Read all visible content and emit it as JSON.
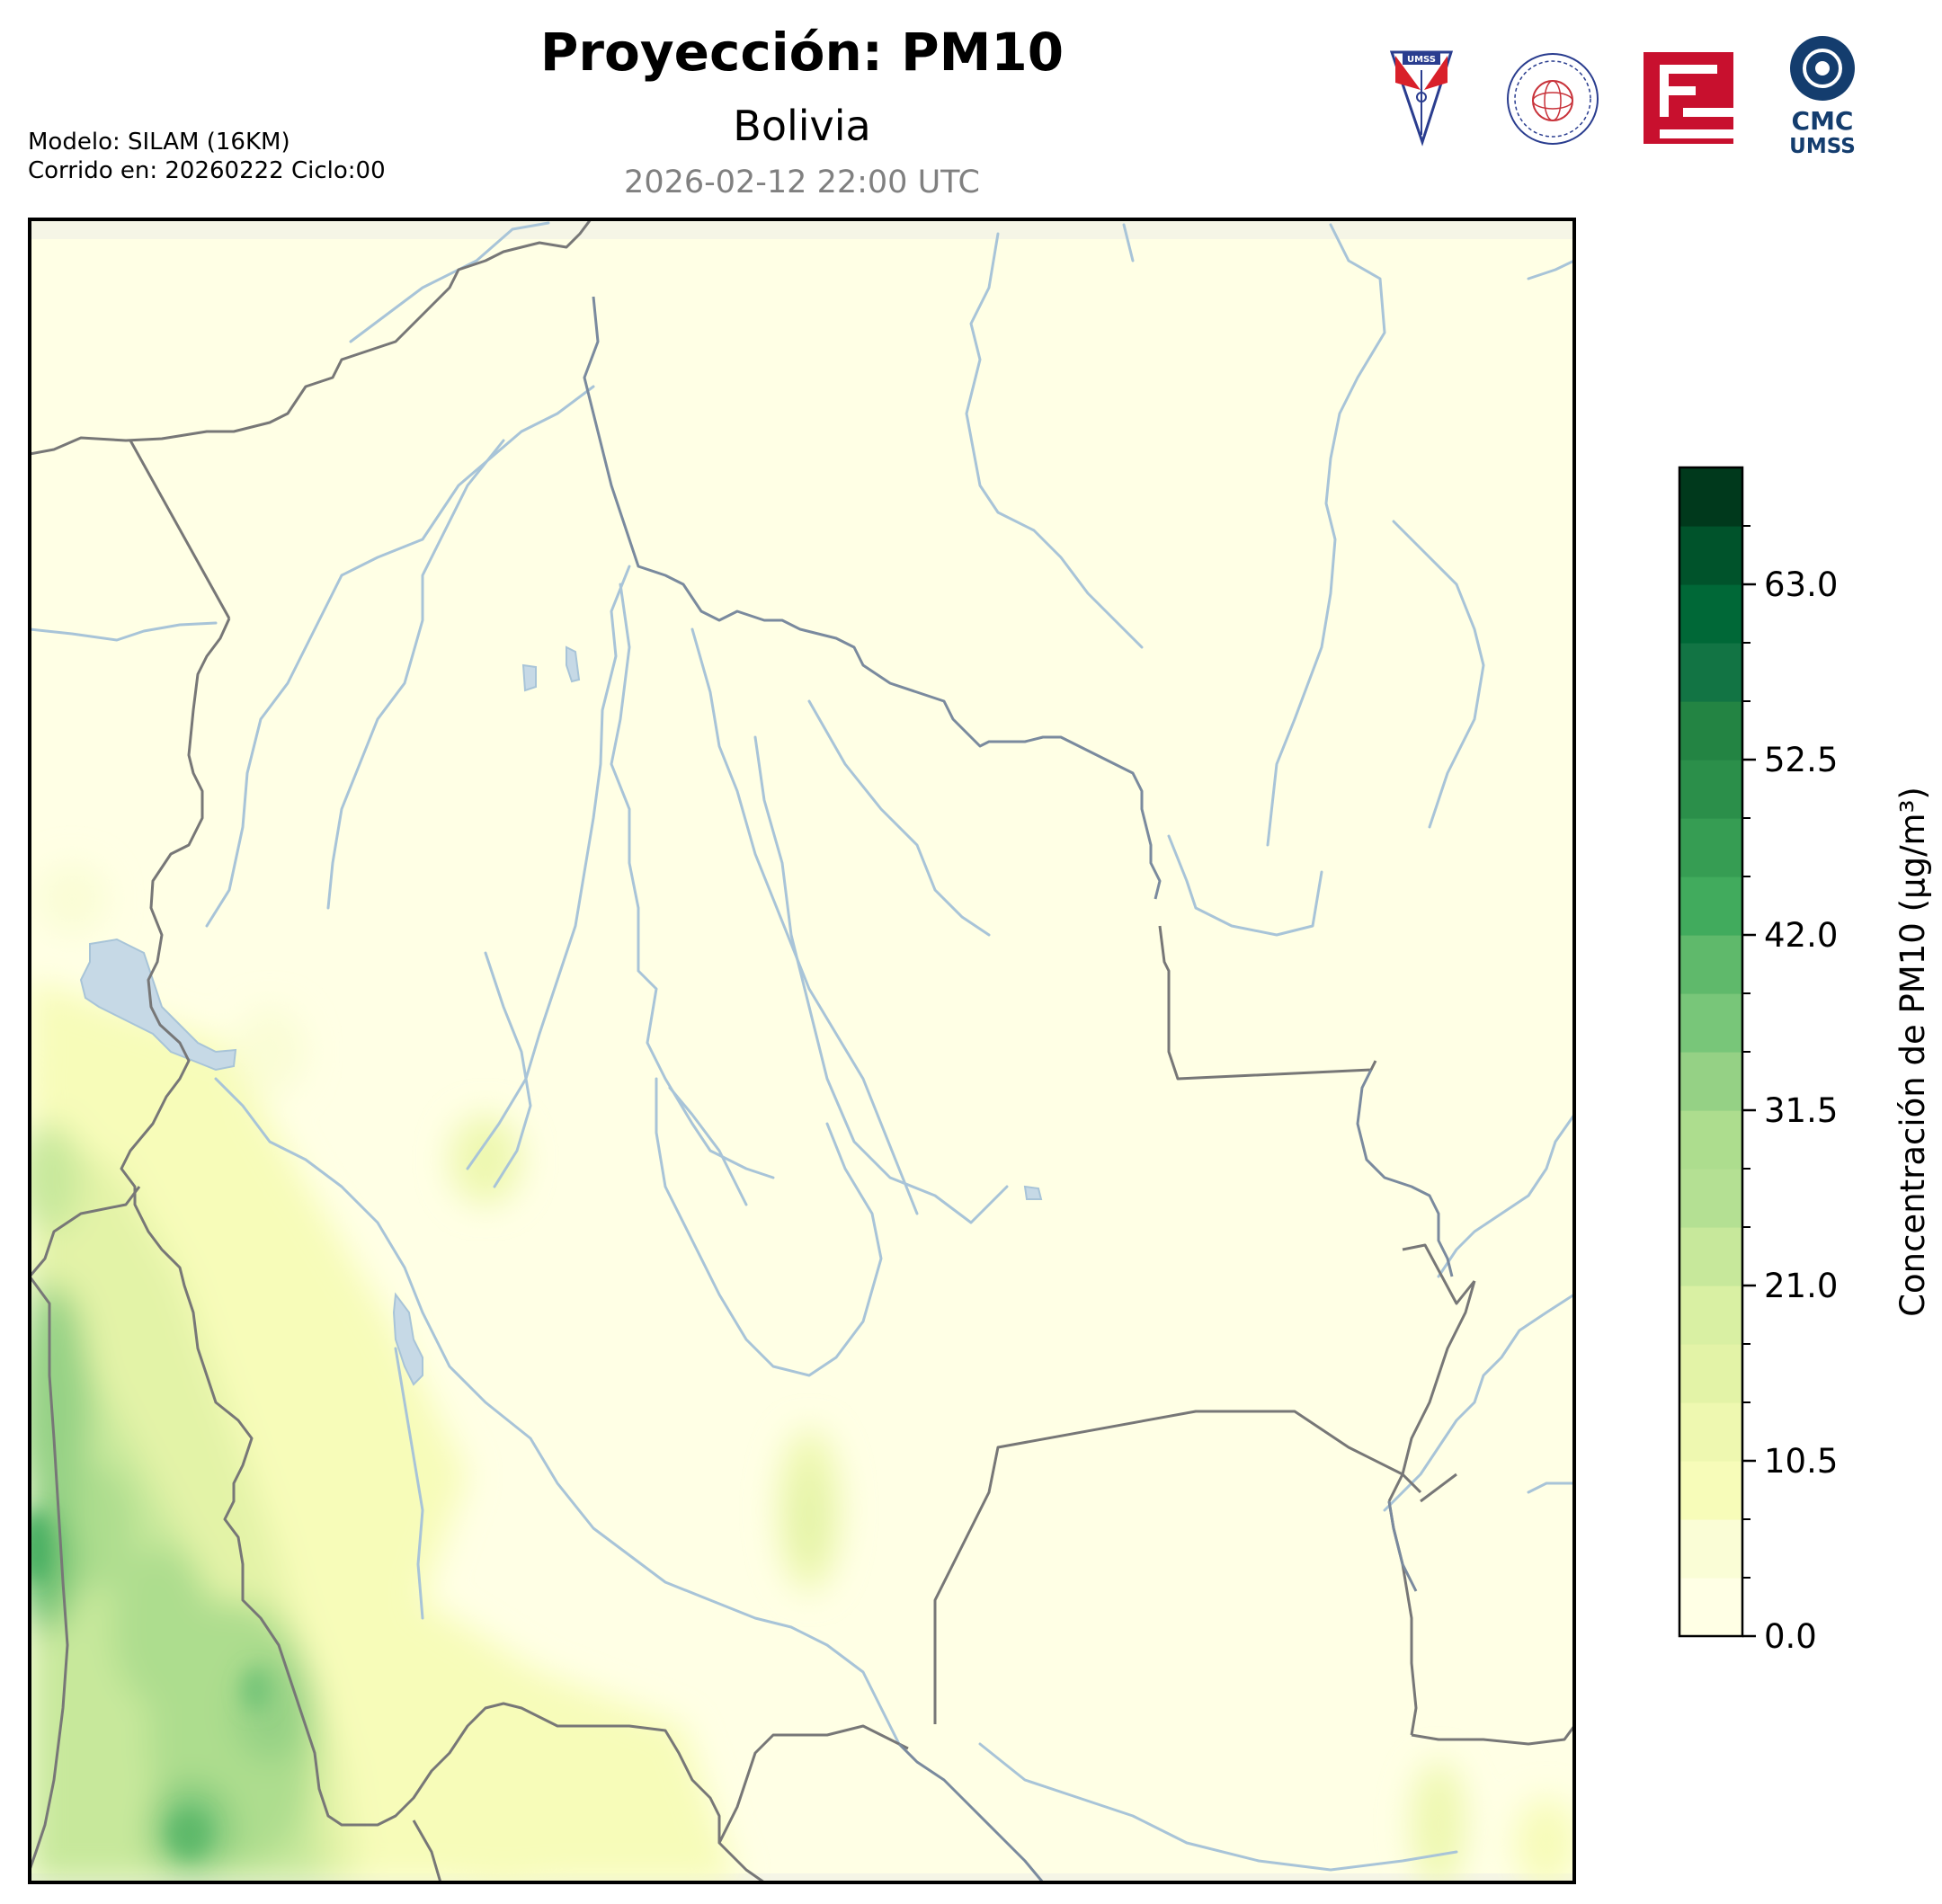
{
  "header": {
    "title": "Proyección: PM10",
    "region": "Bolivia",
    "timestamp": "2026-02-12 22:00 UTC",
    "model_line": "Modelo: SILAM (16KM)",
    "run_line": "Corrido en: 20260222 Ciclo:00"
  },
  "logos": [
    {
      "name": "umss-shield-logo",
      "text": "UMSS"
    },
    {
      "name": "departamento-fisica-seal-logo",
      "text": "DEPARTAMENTO DE FÍSICA"
    },
    {
      "name": "red-glyph-logo",
      "text": ""
    },
    {
      "name": "cmc-umss-logo",
      "text_top": "CMC",
      "text_bottom": "UMSS"
    }
  ],
  "colorbar": {
    "label": "Concentración de PM10 (µg/m³)",
    "ticks": [
      "0.0",
      "10.5",
      "21.0",
      "31.5",
      "42.0",
      "52.5",
      "63.0"
    ],
    "tick_values": [
      0.0,
      10.5,
      21.0,
      31.5,
      42.0,
      52.5,
      63.0
    ],
    "min": 0,
    "max": 70,
    "levels": 20,
    "colors": [
      "#ffffe5",
      "#fafdd6",
      "#f7fcb9",
      "#eef8b0",
      "#e3f3a7",
      "#d9f0a3",
      "#c7e89b",
      "#b4e093",
      "#addd8e",
      "#95d185",
      "#78c679",
      "#5fb96b",
      "#41ab5d",
      "#369d53",
      "#2b8f4a",
      "#238443",
      "#127444",
      "#006837",
      "#00532b",
      "#00391c"
    ]
  },
  "map": {
    "background_color": "#ffffe5",
    "river_color": "#a8c4d8",
    "border_color": "#707070",
    "lake_color": "#c6d9e6"
  }
}
